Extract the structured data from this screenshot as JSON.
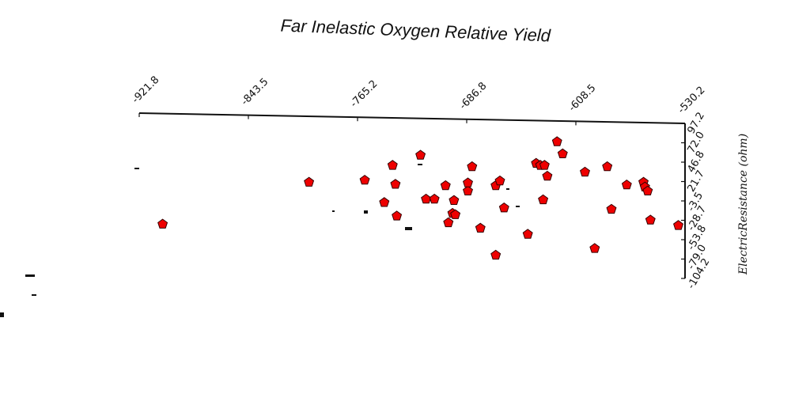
{
  "chart_data": {
    "type": "scatter",
    "title": "Far Inelastic Oxygen Relative Yield",
    "xlabel": "",
    "ylabel": "ElectricResistance (ohm)",
    "x_ticks": [
      "-921.8",
      "-843.5",
      "-765.2",
      "-686.8",
      "-608.5",
      "-530.2"
    ],
    "y_ticks": [
      "97.2",
      "72.0",
      "46.8",
      "21.7",
      "-3.5",
      "-28.7",
      "-53.8",
      "-79.0",
      "-104.2"
    ],
    "xlim": [
      -921.8,
      -530.2
    ],
    "ylim": [
      -104.2,
      97.2
    ],
    "x_axis_position": "top",
    "y_axis_position": "right",
    "grid": false,
    "marker": "pentagon",
    "marker_color": "#ee0000",
    "points": [
      {
        "x": -905.0,
        "y": -32.0
      },
      {
        "x": -800.0,
        "y": 30.0
      },
      {
        "x": -760.0,
        "y": 33.0
      },
      {
        "x": -740.0,
        "y": 55.0
      },
      {
        "x": -738.0,
        "y": 27.0
      },
      {
        "x": -746.0,
        "y": 0.0
      },
      {
        "x": -737.0,
        "y": -20.0
      },
      {
        "x": -720.0,
        "y": 70.0
      },
      {
        "x": -716.0,
        "y": 5.0
      },
      {
        "x": -710.0,
        "y": 5.0
      },
      {
        "x": -702.0,
        "y": 25.0
      },
      {
        "x": -700.0,
        "y": -30.0
      },
      {
        "x": -696.0,
        "y": 3.0
      },
      {
        "x": -697.0,
        "y": -16.0
      },
      {
        "x": -695.0,
        "y": -18.0
      },
      {
        "x": -686.0,
        "y": 17.0
      },
      {
        "x": -686.0,
        "y": 29.0
      },
      {
        "x": -683.0,
        "y": 53.0
      },
      {
        "x": -677.0,
        "y": -38.0
      },
      {
        "x": -666.0,
        "y": 25.0
      },
      {
        "x": -663.0,
        "y": 32.0
      },
      {
        "x": -660.0,
        "y": -8.0
      },
      {
        "x": -666.0,
        "y": -78.0
      },
      {
        "x": -643.0,
        "y": -47.0
      },
      {
        "x": -637.0,
        "y": 58.0
      },
      {
        "x": -634.0,
        "y": 55.0
      },
      {
        "x": -631.0,
        "y": 55.0
      },
      {
        "x": -632.0,
        "y": 4.0
      },
      {
        "x": -629.0,
        "y": 39.0
      },
      {
        "x": -622.0,
        "y": 90.0
      },
      {
        "x": -618.0,
        "y": 72.0
      },
      {
        "x": -602.0,
        "y": 45.0
      },
      {
        "x": -595.0,
        "y": -68.0
      },
      {
        "x": -586.0,
        "y": 53.0
      },
      {
        "x": -583.0,
        "y": -10.0
      },
      {
        "x": -572.0,
        "y": 26.0
      },
      {
        "x": -560.0,
        "y": 30.0
      },
      {
        "x": -559.0,
        "y": 23.0
      },
      {
        "x": -557.0,
        "y": 17.0
      },
      {
        "x": -555.0,
        "y": -26.0
      },
      {
        "x": -535.0,
        "y": -34.0
      }
    ]
  }
}
